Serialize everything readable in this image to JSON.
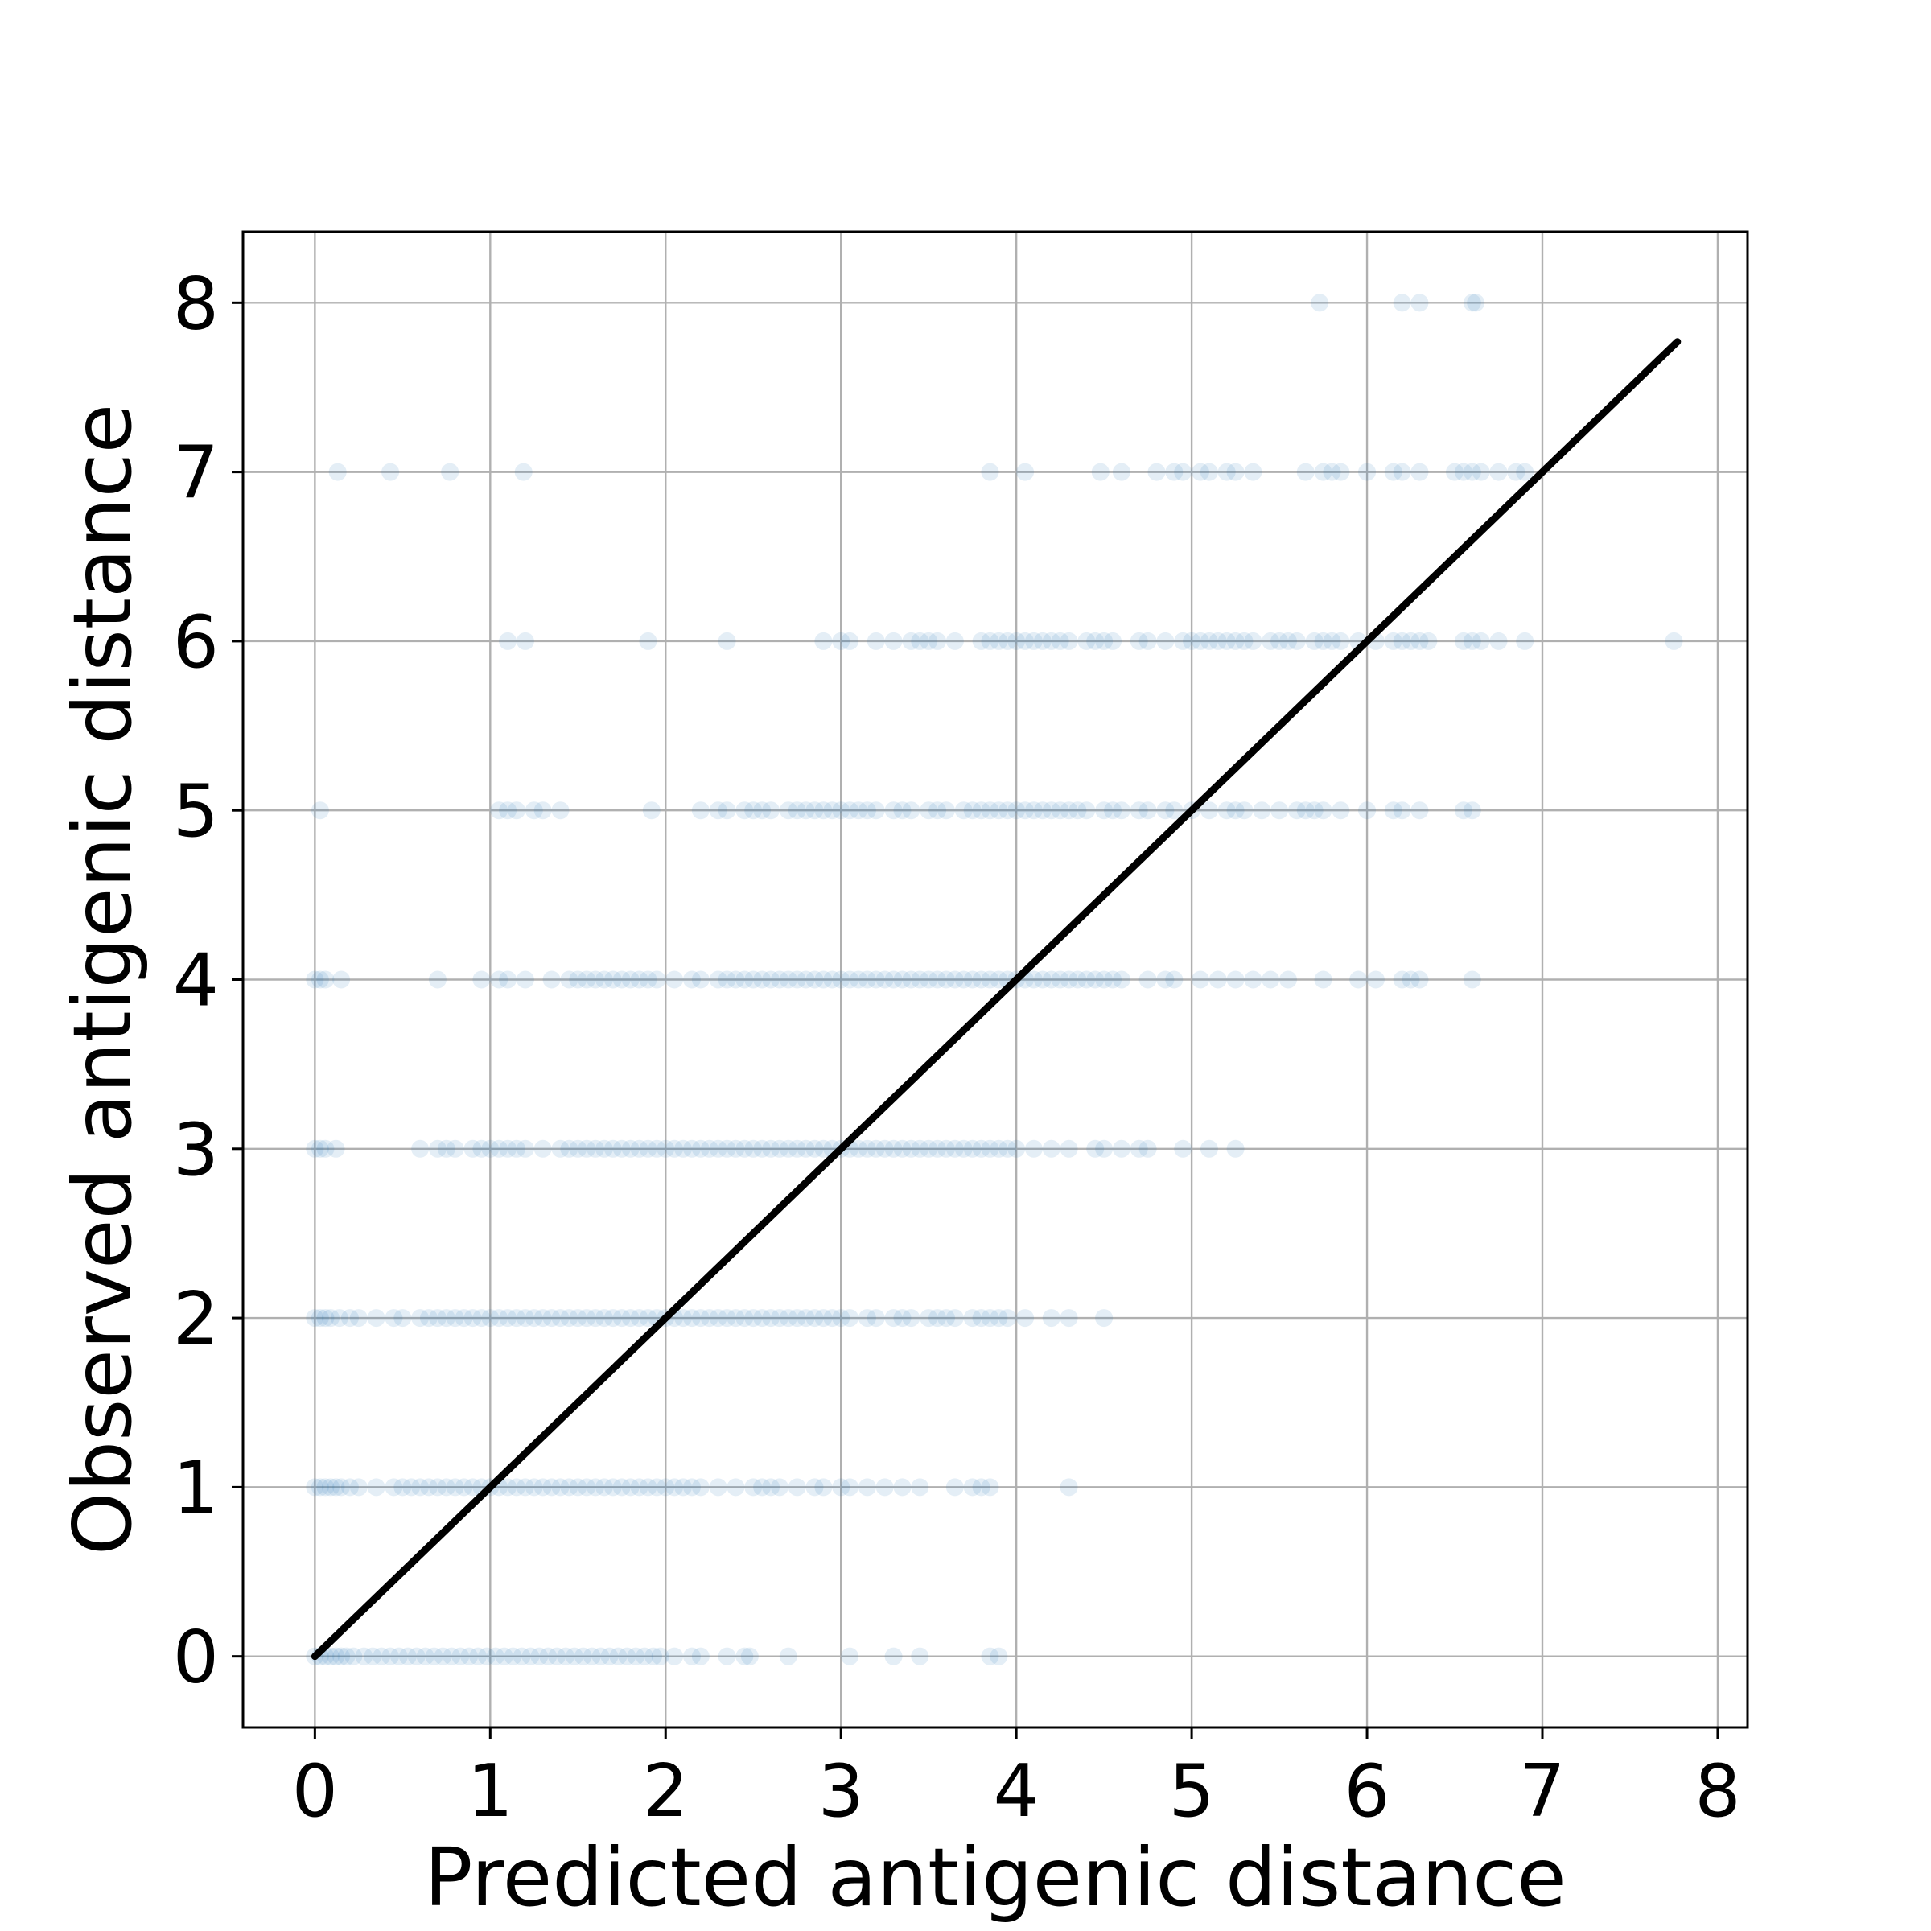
{
  "chart_data": {
    "type": "scatter",
    "xlabel": "Predicted antigenic distance",
    "ylabel": "Observed antigenic distance",
    "xlim": [
      -0.41,
      8.17
    ],
    "ylim": [
      -0.42,
      8.42
    ],
    "x_ticks": [
      "0",
      "1",
      "2",
      "3",
      "4",
      "5",
      "6",
      "7",
      "8"
    ],
    "y_ticks": [
      "0",
      "1",
      "2",
      "3",
      "4",
      "5",
      "6",
      "7",
      "8"
    ],
    "grid": true,
    "marker_color": "#1f77b4",
    "marker_alpha": 0.12,
    "line_color": "#000000",
    "reference_line": {
      "x": [
        0,
        7.77
      ],
      "y": [
        0,
        7.77
      ]
    },
    "series": [
      {
        "rows": [
          {
            "y": 0,
            "x": [
              0.0,
              0.03,
              0.06,
              0.09,
              0.12,
              0.15,
              0.18,
              0.22,
              0.28,
              0.33,
              0.38,
              0.43,
              0.48,
              0.53,
              0.58,
              0.63,
              0.68,
              0.73,
              0.78,
              0.83,
              0.88,
              0.93,
              0.98,
              1.03,
              1.08,
              1.13,
              1.18,
              1.23,
              1.28,
              1.33,
              1.38,
              1.43,
              1.48,
              1.53,
              1.58,
              1.63,
              1.68,
              1.73,
              1.78,
              1.83,
              1.88,
              1.93,
              1.97,
              2.05,
              2.15,
              2.2,
              2.35,
              2.45,
              2.48,
              2.7,
              3.05,
              3.3,
              3.45,
              3.85,
              3.9
            ]
          },
          {
            "y": 1,
            "x": [
              0.0,
              0.03,
              0.06,
              0.09,
              0.12,
              0.15,
              0.2,
              0.25,
              0.35,
              0.45,
              0.5,
              0.55,
              0.6,
              0.65,
              0.7,
              0.75,
              0.8,
              0.85,
              0.9,
              0.95,
              1.0,
              1.05,
              1.1,
              1.15,
              1.2,
              1.25,
              1.3,
              1.35,
              1.4,
              1.45,
              1.5,
              1.55,
              1.6,
              1.65,
              1.7,
              1.75,
              1.8,
              1.85,
              1.9,
              1.95,
              2.0,
              2.05,
              2.1,
              2.15,
              2.2,
              2.3,
              2.4,
              2.5,
              2.55,
              2.6,
              2.65,
              2.75,
              2.85,
              2.9,
              3.0,
              3.05,
              3.15,
              3.25,
              3.35,
              3.45,
              3.65,
              3.75,
              3.8,
              3.85,
              4.3
            ]
          },
          {
            "y": 2,
            "x": [
              0.0,
              0.03,
              0.06,
              0.09,
              0.14,
              0.2,
              0.25,
              0.35,
              0.45,
              0.5,
              0.6,
              0.65,
              0.7,
              0.75,
              0.8,
              0.85,
              0.9,
              0.95,
              1.0,
              1.05,
              1.1,
              1.15,
              1.2,
              1.25,
              1.3,
              1.35,
              1.4,
              1.45,
              1.5,
              1.55,
              1.6,
              1.65,
              1.7,
              1.75,
              1.8,
              1.85,
              1.9,
              1.95,
              2.0,
              2.05,
              2.1,
              2.15,
              2.2,
              2.25,
              2.3,
              2.35,
              2.4,
              2.45,
              2.5,
              2.55,
              2.6,
              2.65,
              2.7,
              2.75,
              2.8,
              2.85,
              2.9,
              2.95,
              3.0,
              3.05,
              3.15,
              3.2,
              3.3,
              3.35,
              3.4,
              3.5,
              3.55,
              3.6,
              3.65,
              3.75,
              3.8,
              3.85,
              3.9,
              3.95,
              4.05,
              4.2,
              4.3,
              4.5
            ]
          },
          {
            "y": 3,
            "x": [
              0.0,
              0.03,
              0.06,
              0.12,
              0.6,
              0.7,
              0.75,
              0.8,
              0.9,
              0.95,
              1.0,
              1.05,
              1.1,
              1.15,
              1.2,
              1.3,
              1.4,
              1.45,
              1.5,
              1.55,
              1.6,
              1.65,
              1.7,
              1.75,
              1.8,
              1.85,
              1.9,
              1.95,
              2.0,
              2.05,
              2.1,
              2.15,
              2.2,
              2.25,
              2.3,
              2.35,
              2.4,
              2.45,
              2.5,
              2.55,
              2.6,
              2.65,
              2.7,
              2.75,
              2.8,
              2.85,
              2.9,
              2.95,
              3.0,
              3.05,
              3.1,
              3.15,
              3.2,
              3.25,
              3.3,
              3.35,
              3.4,
              3.45,
              3.5,
              3.55,
              3.6,
              3.65,
              3.7,
              3.75,
              3.8,
              3.85,
              3.9,
              3.95,
              4.0,
              4.1,
              4.2,
              4.3,
              4.45,
              4.5,
              4.6,
              4.7,
              4.75,
              4.95,
              5.1,
              5.25
            ]
          },
          {
            "y": 4,
            "x": [
              0.0,
              0.03,
              0.06,
              0.15,
              0.7,
              0.95,
              1.05,
              1.1,
              1.2,
              1.35,
              1.45,
              1.5,
              1.55,
              1.6,
              1.65,
              1.7,
              1.75,
              1.8,
              1.85,
              1.9,
              1.95,
              2.05,
              2.15,
              2.2,
              2.3,
              2.35,
              2.4,
              2.45,
              2.5,
              2.55,
              2.6,
              2.65,
              2.7,
              2.75,
              2.8,
              2.85,
              2.9,
              2.95,
              3.0,
              3.05,
              3.1,
              3.15,
              3.2,
              3.25,
              3.3,
              3.35,
              3.4,
              3.45,
              3.5,
              3.55,
              3.6,
              3.65,
              3.7,
              3.75,
              3.8,
              3.85,
              3.9,
              3.95,
              4.0,
              4.05,
              4.1,
              4.15,
              4.2,
              4.25,
              4.3,
              4.35,
              4.4,
              4.45,
              4.5,
              4.55,
              4.6,
              4.75,
              4.85,
              4.9,
              5.05,
              5.15,
              5.25,
              5.35,
              5.45,
              5.55,
              5.75,
              5.95,
              6.05,
              6.2,
              6.25,
              6.3,
              6.6
            ]
          },
          {
            "y": 5,
            "x": [
              0.03,
              1.05,
              1.1,
              1.15,
              1.25,
              1.3,
              1.4,
              1.92,
              2.2,
              2.3,
              2.35,
              2.45,
              2.5,
              2.55,
              2.6,
              2.7,
              2.75,
              2.8,
              2.85,
              2.9,
              2.95,
              3.0,
              3.05,
              3.1,
              3.15,
              3.2,
              3.3,
              3.35,
              3.4,
              3.5,
              3.55,
              3.6,
              3.7,
              3.75,
              3.8,
              3.85,
              3.9,
              3.95,
              4.0,
              4.05,
              4.1,
              4.15,
              4.2,
              4.25,
              4.3,
              4.35,
              4.4,
              4.5,
              4.55,
              4.6,
              4.7,
              4.75,
              4.85,
              4.9,
              5.0,
              5.1,
              5.2,
              5.25,
              5.3,
              5.4,
              5.5,
              5.6,
              5.65,
              5.7,
              5.75,
              5.85,
              6.0,
              6.15,
              6.2,
              6.3,
              6.55,
              6.6
            ]
          },
          {
            "y": 6,
            "x": [
              1.1,
              1.2,
              1.9,
              2.35,
              2.9,
              3.0,
              3.05,
              3.2,
              3.3,
              3.4,
              3.45,
              3.5,
              3.55,
              3.65,
              3.8,
              3.85,
              3.9,
              3.95,
              4.0,
              4.05,
              4.1,
              4.15,
              4.2,
              4.25,
              4.3,
              4.4,
              4.45,
              4.5,
              4.55,
              4.7,
              4.75,
              4.85,
              4.95,
              5.0,
              5.05,
              5.1,
              5.15,
              5.2,
              5.25,
              5.3,
              5.35,
              5.45,
              5.5,
              5.55,
              5.6,
              5.7,
              5.75,
              5.8,
              5.85,
              5.95,
              6.05,
              6.15,
              6.2,
              6.25,
              6.3,
              6.35,
              6.55,
              6.6,
              6.65,
              6.75,
              6.9,
              7.75
            ]
          },
          {
            "y": 7,
            "x": [
              0.13,
              0.43,
              0.77,
              1.19,
              3.85,
              4.05,
              4.48,
              4.6,
              4.8,
              4.9,
              4.95,
              5.05,
              5.1,
              5.2,
              5.25,
              5.35,
              5.65,
              5.75,
              5.8,
              5.85,
              6.0,
              6.15,
              6.2,
              6.3,
              6.5,
              6.55,
              6.6,
              6.65,
              6.75,
              6.85,
              6.9
            ]
          },
          {
            "y": 8,
            "x": [
              5.73,
              6.2,
              6.3,
              6.6,
              6.62
            ]
          }
        ]
      }
    ]
  }
}
